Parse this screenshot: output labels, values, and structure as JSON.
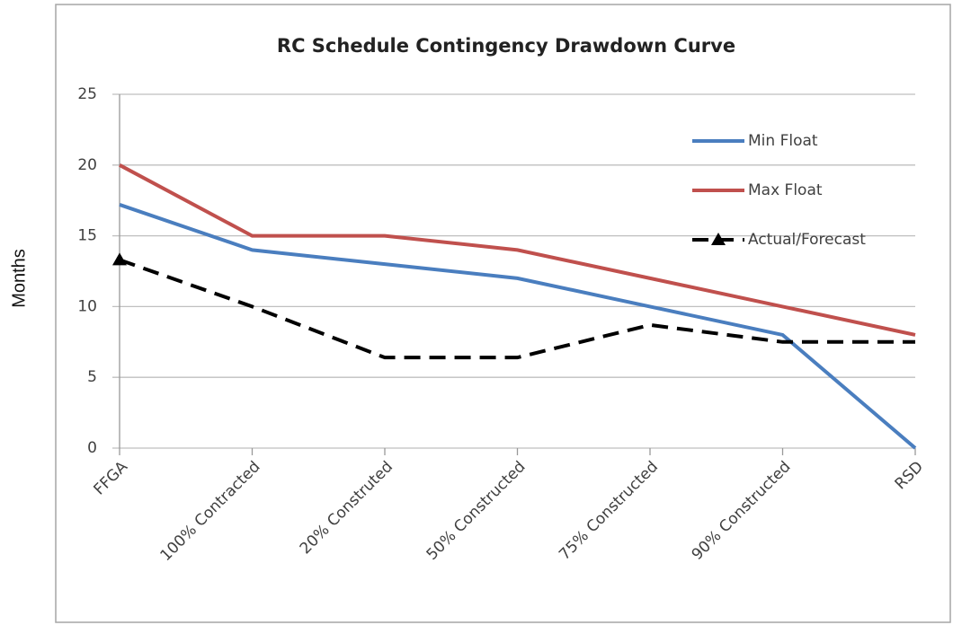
{
  "chart_data": {
    "type": "line",
    "title": "RC Schedule Contingency Drawdown Curve",
    "y_label": "Months",
    "categories": [
      "FFGA",
      "100% Contracted",
      "20% Construted",
      "50% Constructed",
      "75% Constructed",
      "90% Constructed",
      "RSD"
    ],
    "series": [
      {
        "name": "Min Float",
        "color": "#4a7ebf",
        "style": "solid",
        "values": [
          17.2,
          14,
          13,
          12,
          10,
          8,
          0
        ]
      },
      {
        "name": "Max Float",
        "color": "#c0504d",
        "style": "solid",
        "values": [
          20,
          15,
          15,
          14,
          12,
          10,
          8
        ]
      },
      {
        "name": "Actual/Forecast",
        "color": "#000000",
        "style": "dashed",
        "marker": "triangle",
        "values": [
          13.3,
          10,
          6.4,
          6.4,
          8.7,
          7.5,
          7.5
        ]
      }
    ],
    "ylim": [
      0,
      25
    ],
    "yticks": [
      0,
      5,
      10,
      15,
      20,
      25
    ],
    "grid": true,
    "legend": "right"
  }
}
